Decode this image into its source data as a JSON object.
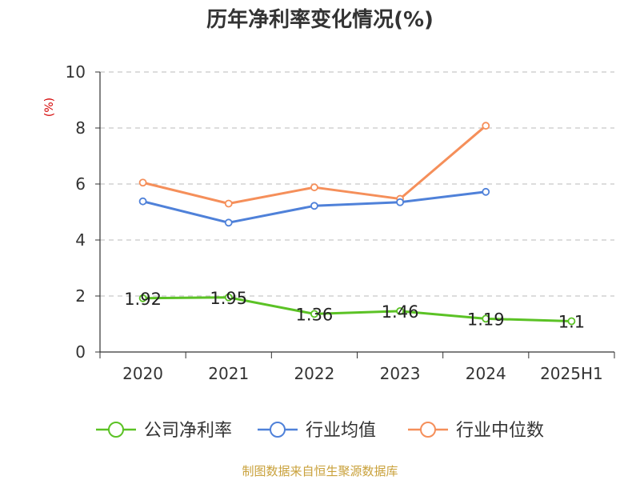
{
  "chart_data": {
    "type": "line",
    "title": "历年净利率变化情况(%)",
    "ylabel": "(%)",
    "ylim": [
      0,
      10
    ],
    "yticks": [
      0,
      2,
      4,
      6,
      8,
      10
    ],
    "categories": [
      "2020",
      "2021",
      "2022",
      "2023",
      "2024",
      "2025H1"
    ],
    "grid": true,
    "legend_position": "bottom",
    "series": [
      {
        "name": "公司净利率",
        "color": "#5bc225",
        "values": [
          1.92,
          1.95,
          1.36,
          1.46,
          1.19,
          1.1
        ],
        "labels": [
          "1.92",
          "1.95",
          "1.36",
          "1.46",
          "1.19",
          "1.1"
        ]
      },
      {
        "name": "行业均值",
        "color": "#4f81d9",
        "values": [
          5.38,
          4.62,
          5.22,
          5.35,
          5.72,
          null
        ]
      },
      {
        "name": "行业中位数",
        "color": "#f58f5a",
        "values": [
          6.05,
          5.3,
          5.88,
          5.47,
          8.08,
          null
        ]
      }
    ]
  },
  "footer": {
    "source": "制图数据来自恒生聚源数据库"
  }
}
